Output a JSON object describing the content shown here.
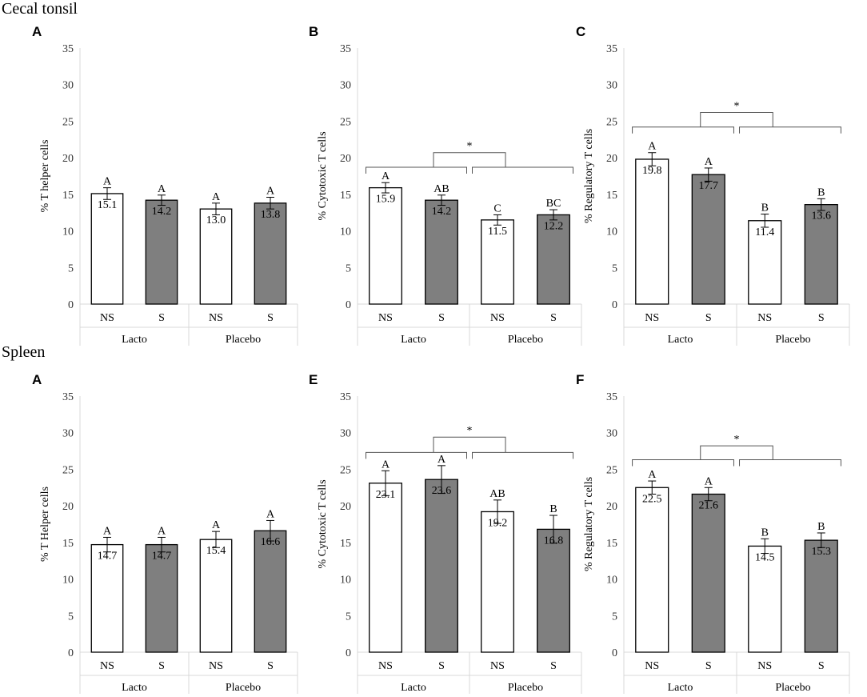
{
  "colors": {
    "ns_fill": "#ffffff",
    "s_fill": "#7f7f7f",
    "axis": "#d9d9d9",
    "bar_stroke": "#000000",
    "text": "#000000"
  },
  "sections": [
    {
      "title": "Cecal tonsil"
    },
    {
      "title": "Spleen"
    }
  ],
  "chart_data": [
    {
      "type": "bar",
      "section": 0,
      "panel": "A",
      "ylabel": "% T helper cells",
      "ylim": [
        0,
        35
      ],
      "yticks": [
        0,
        5,
        10,
        15,
        20,
        25,
        30,
        35
      ],
      "categories": [
        "NS",
        "S",
        "NS",
        "S"
      ],
      "groups": [
        "Lacto",
        "Placebo"
      ],
      "values": [
        15.1,
        14.2,
        13.0,
        13.8
      ],
      "errors": [
        0.8,
        0.7,
        0.8,
        0.8
      ],
      "value_labels": [
        "15.1",
        "14.2",
        "13.0",
        "13.8"
      ],
      "letters": [
        "A",
        "A",
        "A",
        "A"
      ],
      "significance": null
    },
    {
      "type": "bar",
      "section": 0,
      "panel": "B",
      "ylabel": "% Cytotoxic T cells",
      "ylim": [
        0,
        35
      ],
      "yticks": [
        0,
        5,
        10,
        15,
        20,
        25,
        30,
        35
      ],
      "categories": [
        "NS",
        "S",
        "NS",
        "S"
      ],
      "groups": [
        "Lacto",
        "Placebo"
      ],
      "values": [
        15.9,
        14.2,
        11.5,
        12.2
      ],
      "errors": [
        0.7,
        0.7,
        0.7,
        0.7
      ],
      "value_labels": [
        "15.9",
        "14.2",
        "11.5",
        "12.2"
      ],
      "letters": [
        "A",
        "AB",
        "C",
        "BC"
      ],
      "significance": {
        "label": "*",
        "bracket_y": 18.7,
        "top_y": 20.7
      }
    },
    {
      "type": "bar",
      "section": 0,
      "panel": "C",
      "ylabel": "% Regulatory T cells",
      "ylim": [
        0,
        35
      ],
      "yticks": [
        0,
        5,
        10,
        15,
        20,
        25,
        30,
        35
      ],
      "categories": [
        "NS",
        "S",
        "NS",
        "S"
      ],
      "groups": [
        "Lacto",
        "Placebo"
      ],
      "values": [
        19.8,
        17.7,
        11.4,
        13.6
      ],
      "errors": [
        0.9,
        0.9,
        0.9,
        0.8
      ],
      "value_labels": [
        "19.8",
        "17.7",
        "11.4",
        "13.6"
      ],
      "letters": [
        "A",
        "A",
        "B",
        "B"
      ],
      "significance": {
        "label": "*",
        "bracket_y": 24.2,
        "top_y": 26.2
      }
    },
    {
      "type": "bar",
      "section": 1,
      "panel": "A",
      "ylabel": "% T Helper cells",
      "ylim": [
        0,
        35
      ],
      "yticks": [
        0,
        5,
        10,
        15,
        20,
        25,
        30,
        35
      ],
      "categories": [
        "NS",
        "S",
        "NS",
        "S"
      ],
      "groups": [
        "Lacto",
        "Placebo"
      ],
      "values": [
        14.7,
        14.7,
        15.4,
        16.6
      ],
      "errors": [
        1.0,
        1.0,
        1.1,
        1.4
      ],
      "value_labels": [
        "14.7",
        "14.7",
        "15.4",
        "16.6"
      ],
      "letters": [
        "A",
        "A",
        "A",
        "A"
      ],
      "significance": null
    },
    {
      "type": "bar",
      "section": 1,
      "panel": "E",
      "ylabel": "% Cytotoxic T cells",
      "ylim": [
        0,
        35
      ],
      "yticks": [
        0,
        5,
        10,
        15,
        20,
        25,
        30,
        35
      ],
      "categories": [
        "NS",
        "S",
        "NS",
        "S"
      ],
      "groups": [
        "Lacto",
        "Placebo"
      ],
      "values": [
        23.1,
        23.6,
        19.2,
        16.8
      ],
      "errors": [
        1.7,
        1.9,
        1.6,
        1.9
      ],
      "value_labels": [
        "23.1",
        "23.6",
        "19.2",
        "16.8"
      ],
      "letters": [
        "A",
        "A",
        "AB",
        "B"
      ],
      "significance": {
        "label": "*",
        "bracket_y": 27.3,
        "top_y": 29.4
      }
    },
    {
      "type": "bar",
      "section": 1,
      "panel": "F",
      "ylabel": "% Regulatory T cells",
      "ylim": [
        0,
        35
      ],
      "yticks": [
        0,
        5,
        10,
        15,
        20,
        25,
        30,
        35
      ],
      "categories": [
        "NS",
        "S",
        "NS",
        "S"
      ],
      "groups": [
        "Lacto",
        "Placebo"
      ],
      "values": [
        22.5,
        21.6,
        14.5,
        15.3
      ],
      "errors": [
        0.9,
        0.9,
        1.0,
        1.0
      ],
      "value_labels": [
        "22.5",
        "21.6",
        "14.5",
        "15.3"
      ],
      "letters": [
        "A",
        "A",
        "B",
        "B"
      ],
      "significance": {
        "label": "*",
        "bracket_y": 26.3,
        "top_y": 28.2
      }
    }
  ]
}
